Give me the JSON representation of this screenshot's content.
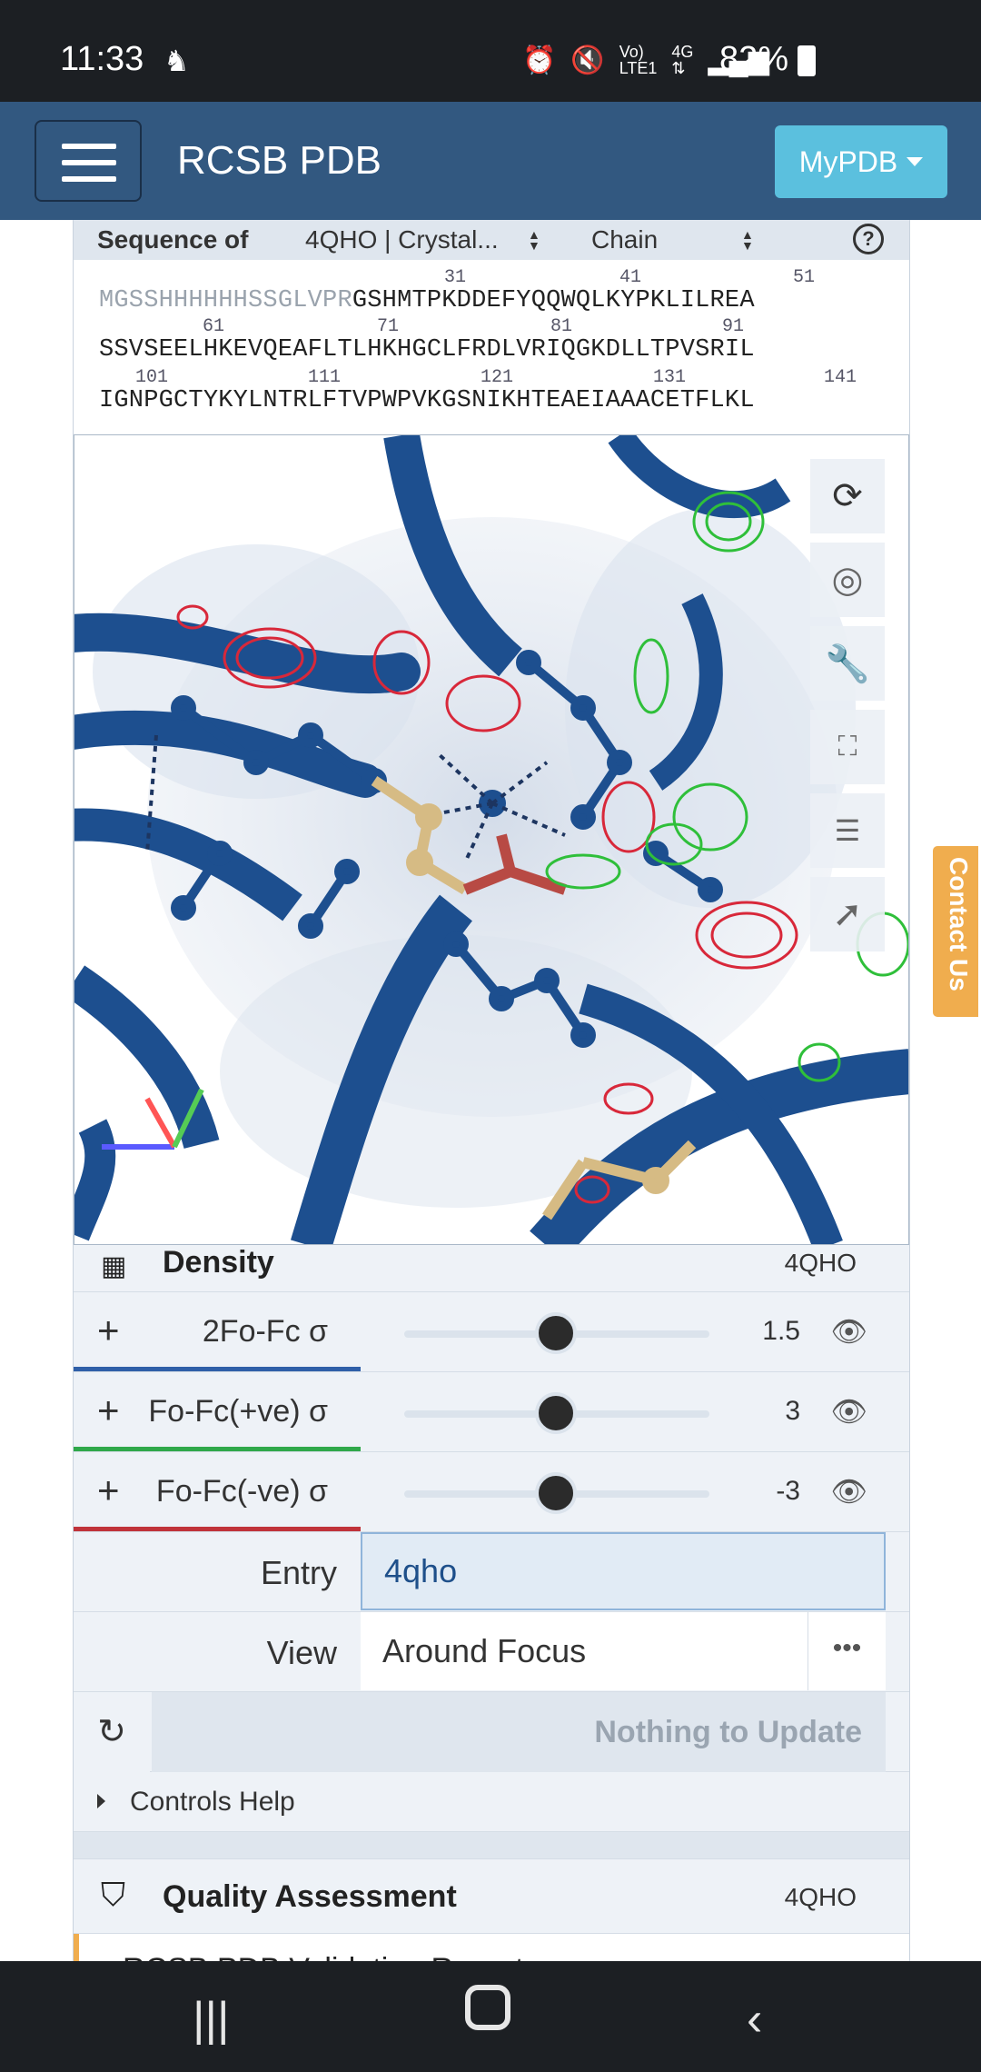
{
  "status_bar": {
    "time": "11:33",
    "battery": "82%",
    "icons": [
      "alarm-icon",
      "mute-icon",
      "volte-icon",
      "4g-icon",
      "signal-icon"
    ]
  },
  "navbar": {
    "brand": "RCSB PDB",
    "mypdb_label": "MyPDB"
  },
  "sequence": {
    "label": "Sequence of",
    "entry_select": "4QHO | Crystal...",
    "chain_select": "Chain",
    "help": "?",
    "numbers": [
      "31",
      "41",
      "51",
      "61",
      "71",
      "81",
      "91",
      "101",
      "111",
      "121",
      "131",
      "141"
    ],
    "line1_dim": "MGSSHHHHHHSSGLVPR",
    "line1": "GSHMTPKDDEFYQQWQLKYPKLILREA",
    "line2": "SSVSEELHKEVQEAFLTLHKHGCLFRDLVRIQGKDLLTPVSRIL",
    "line3": "IGNPGCTYKYLNTRLFTVPWPVKGSNIKHTEAEIAAACETFLKL"
  },
  "viewer": {
    "tools": [
      "reset-camera-icon",
      "screenshot-icon",
      "wrench-icon",
      "fullscreen-icon",
      "settings-sliders-icon",
      "pointer-icon"
    ]
  },
  "density": {
    "title": "Density",
    "entry_id": "4QHO",
    "rows": [
      {
        "name": "2Fo-Fc σ",
        "value": "1.5",
        "level": 0.5,
        "color": "#2f5fa8"
      },
      {
        "name": "Fo-Fc(+ve) σ",
        "value": "3",
        "level": 0.5,
        "color": "#2fa84a"
      },
      {
        "name": "Fo-Fc(-ve) σ",
        "value": "-3",
        "level": 0.5,
        "color": "#c0333a"
      }
    ]
  },
  "form": {
    "entry_label": "Entry",
    "entry_value": "4qho",
    "view_label": "View",
    "view_value": "Around Focus",
    "update_label": "Nothing to Update",
    "controls_help": "Controls Help"
  },
  "quality": {
    "title": "Quality Assessment",
    "entry_id": "4QHO",
    "report": "RCSB PDB Validation Report"
  },
  "contact_us": "Contact Us"
}
